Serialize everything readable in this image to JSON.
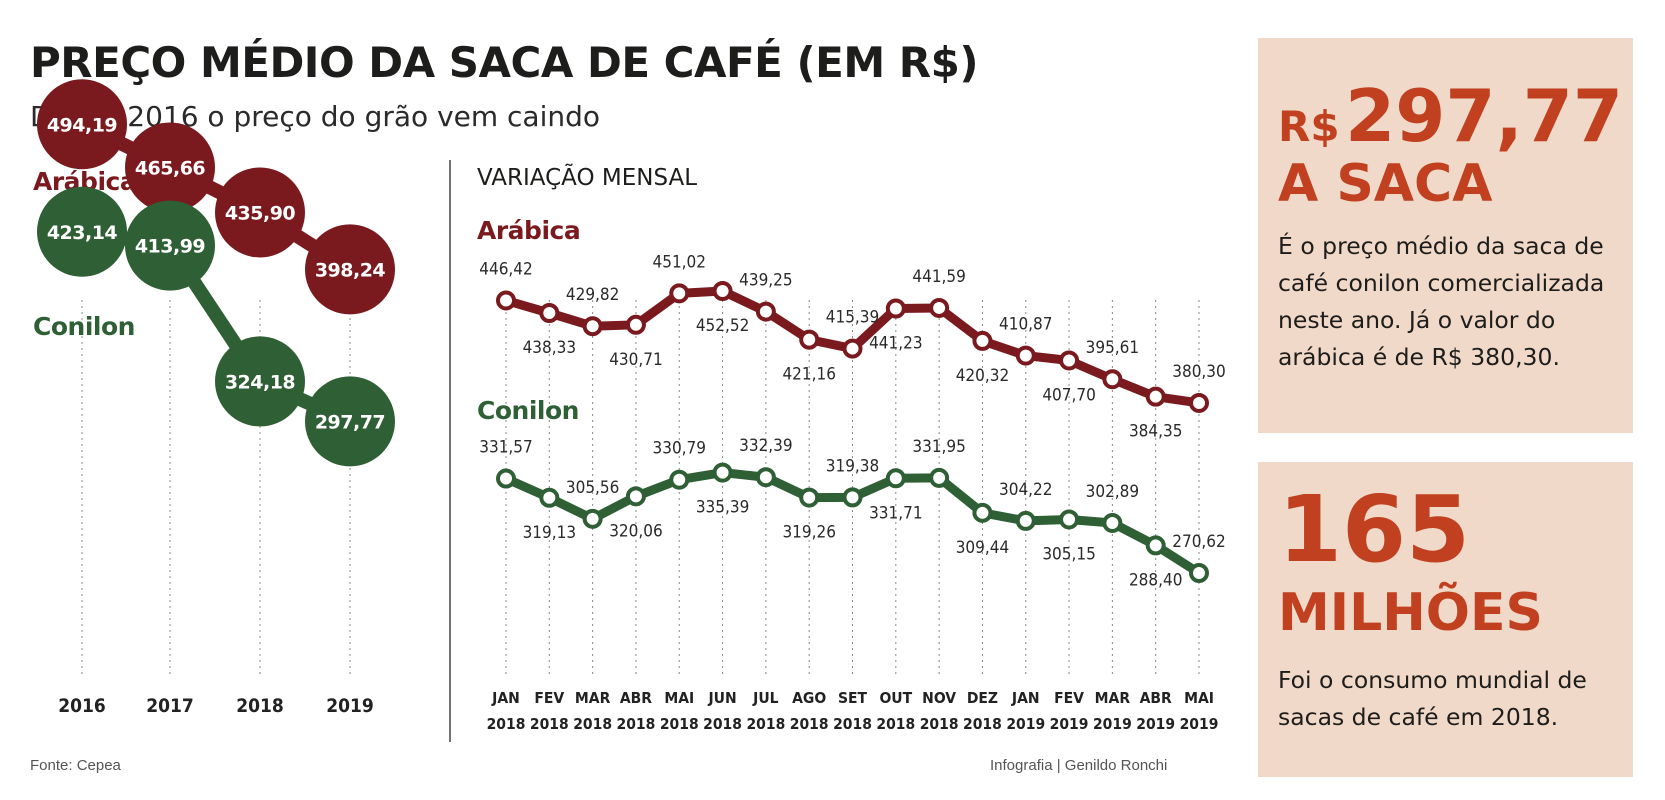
{
  "header": {
    "title": "PREÇO MÉDIO DA SACA DE CAFÉ (EM R$)",
    "subtitle": "Desde 2016 o preço do grão vem caindo"
  },
  "colors": {
    "arabica": "#7a1a1f",
    "conilon": "#2f5f35",
    "accent": "#c0401f",
    "card_bg": "#f1d9c9"
  },
  "chart_data": [
    {
      "type": "line",
      "title": "",
      "categories": [
        "2016",
        "2017",
        "2018",
        "2019"
      ],
      "series": [
        {
          "name": "Arábica",
          "values": [
            494.19,
            465.66,
            435.9,
            398.24
          ],
          "labels": [
            "494,19",
            "465,66",
            "435,90",
            "398,24"
          ]
        },
        {
          "name": "Conilon",
          "values": [
            423.14,
            413.99,
            324.18,
            297.77
          ],
          "labels": [
            "423,14",
            "413,99",
            "324,18",
            "297,77"
          ]
        }
      ]
    },
    {
      "type": "line",
      "title": "VARIAÇÃO MENSAL",
      "categories": [
        [
          "JAN",
          "2018"
        ],
        [
          "FEV",
          "2018"
        ],
        [
          "MAR",
          "2018"
        ],
        [
          "ABR",
          "2018"
        ],
        [
          "MAI",
          "2018"
        ],
        [
          "JUN",
          "2018"
        ],
        [
          "JUL",
          "2018"
        ],
        [
          "AGO",
          "2018"
        ],
        [
          "SET",
          "2018"
        ],
        [
          "OUT",
          "2018"
        ],
        [
          "NOV",
          "2018"
        ],
        [
          "DEZ",
          "2018"
        ],
        [
          "JAN",
          "2019"
        ],
        [
          "FEV",
          "2019"
        ],
        [
          "MAR",
          "2019"
        ],
        [
          "ABR",
          "2019"
        ],
        [
          "MAI",
          "2019"
        ]
      ],
      "series": [
        {
          "name": "Arábica",
          "values": [
            446.42,
            438.33,
            429.82,
            430.71,
            451.02,
            452.52,
            439.25,
            421.16,
            415.39,
            441.23,
            441.59,
            420.32,
            410.87,
            407.7,
            395.61,
            384.35,
            380.3
          ],
          "labels": [
            "446,42",
            "438,33",
            "429,82",
            "430,71",
            "451,02",
            "452,52",
            "439,25",
            "421,16",
            "415,39",
            "441,23",
            "441,59",
            "420,32",
            "410,87",
            "407,70",
            "395,61",
            "384,35",
            "380,30"
          ]
        },
        {
          "name": "Conilon",
          "values": [
            331.57,
            319.13,
            305.56,
            320.06,
            330.79,
            335.39,
            332.39,
            319.26,
            319.38,
            331.71,
            331.95,
            309.44,
            304.22,
            305.15,
            302.89,
            288.4,
            270.62
          ],
          "labels": [
            "331,57",
            "319,13",
            "305,56",
            "320,06",
            "330,79",
            "335,39",
            "332,39",
            "319,26",
            "319,38",
            "331,71",
            "331,95",
            "309,44",
            "304,22",
            "305,15",
            "302,89",
            "288,40",
            "270,62"
          ]
        }
      ]
    }
  ],
  "source": "Fonte: Cepea",
  "credit": "Infografia | Genildo Ronchi",
  "card1": {
    "prefix": "R$",
    "value": "297,77",
    "unit": "A SACA",
    "text": "É o preço médio da saca de café conilon comercializada neste ano. Já o valor do arábica é de R$ 380,30."
  },
  "card2": {
    "value": "165",
    "unit": "MILHÕES",
    "text": "Foi o consumo mundial de sacas de café em 2018."
  }
}
